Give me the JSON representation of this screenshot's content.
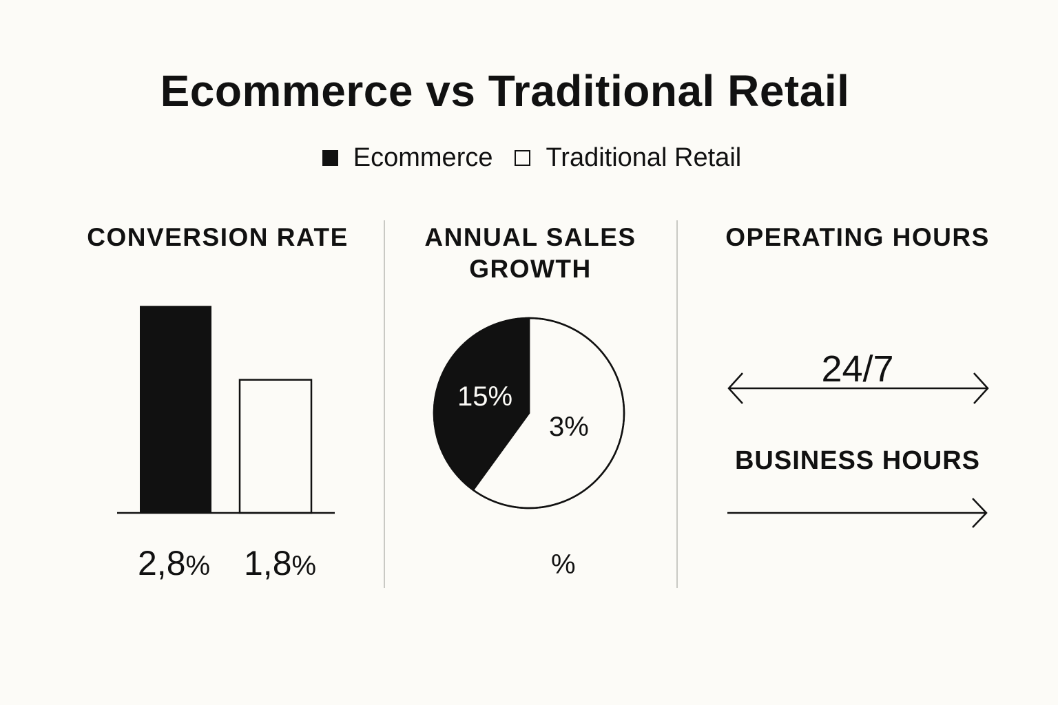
{
  "title": "Ecommerce vs Traditional Retail",
  "legend": [
    {
      "label": "Ecommerce",
      "style": "filled"
    },
    {
      "label": "Traditional Retail",
      "style": "outline"
    }
  ],
  "colors": {
    "background": "#fcfbf7",
    "ink": "#111111",
    "divider": "#c9c9c4"
  },
  "chart_data": [
    {
      "type": "bar",
      "title": "CONVERSION RATE",
      "categories": [
        "Ecommerce",
        "Traditional Retail"
      ],
      "values": [
        2.8,
        1.8
      ],
      "value_labels": [
        "2,8",
        "1,8"
      ],
      "unit": "%",
      "ylim": [
        0,
        3.1
      ],
      "grid": false
    },
    {
      "type": "pie",
      "title": "ANNUAL SALES GROWTH",
      "title_lines": [
        "ANNUAL SALES",
        "GROWTH"
      ],
      "slices": [
        {
          "name": "Ecommerce",
          "label": "15%",
          "fraction": 0.4
        },
        {
          "name": "Traditional Retail",
          "label": "3%",
          "fraction": 0.6
        }
      ],
      "footer": "%"
    },
    {
      "type": "comparison",
      "title": "OPERATING HOURS",
      "items": [
        {
          "name": "Ecommerce",
          "label": "24/7",
          "arrow": "double"
        },
        {
          "name": "Traditional Retail",
          "label": "BUSINESS HOURS",
          "arrow": "single"
        }
      ]
    }
  ]
}
